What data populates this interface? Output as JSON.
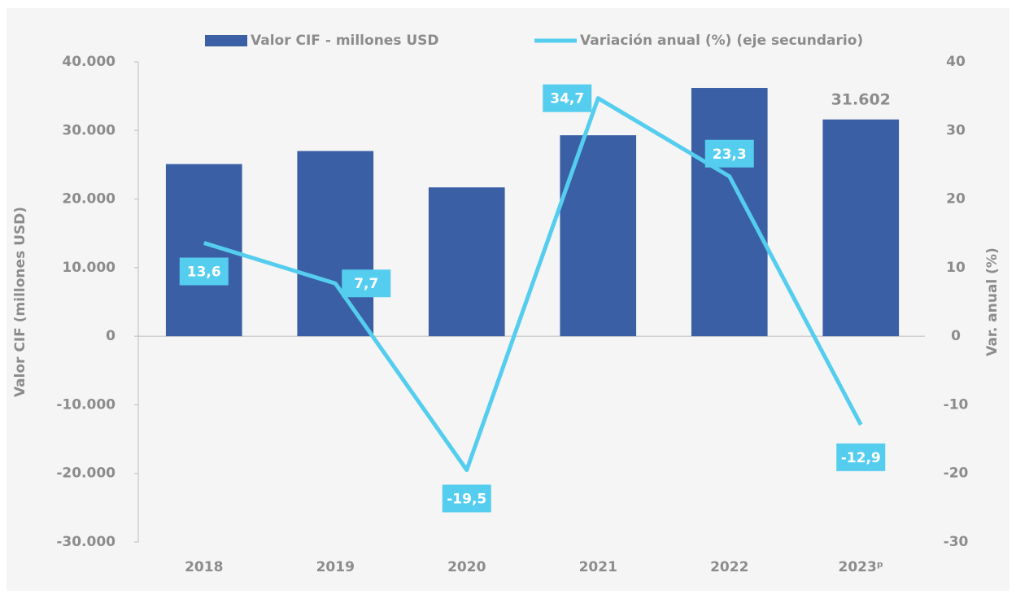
{
  "chart_data": {
    "type": "bar",
    "categories": [
      "2018",
      "2019",
      "2020",
      "2021",
      "2022",
      "2023ᵖ"
    ],
    "series": [
      {
        "name": "Valor CIF - millones USD",
        "type": "bar",
        "color": "#3a5fa5",
        "values": [
          25100,
          27000,
          21700,
          29300,
          36200,
          31602
        ],
        "value_labels": [
          null,
          null,
          null,
          null,
          null,
          "31.602"
        ]
      },
      {
        "name": "Variación anual (%) (eje secundario)",
        "type": "line",
        "axis": "y2",
        "color": "#55cdef",
        "values": [
          13.6,
          7.7,
          -19.5,
          34.7,
          23.3,
          -12.9
        ],
        "value_labels": [
          "13,6",
          "7,7",
          "-19,5",
          "34,7",
          "23,3",
          "-12,9"
        ]
      }
    ],
    "ylabel": "Valor CIF (millones USD)",
    "y2label": "Var. anual (%)",
    "ylim": [
      -30000,
      40000
    ],
    "yticks": [
      {
        "value": -30000,
        "label": "-30.000"
      },
      {
        "value": -20000,
        "label": "-20.000"
      },
      {
        "value": -10000,
        "label": "-10.000"
      },
      0,
      {
        "value": 10000,
        "label": "10.000"
      },
      {
        "value": 20000,
        "label": "20.000"
      },
      {
        "value": 30000,
        "label": "30.000"
      },
      {
        "value": 40000,
        "label": "40.000"
      }
    ],
    "y2lim": [
      -30,
      40
    ],
    "y2ticks": [
      -30,
      -20,
      -10,
      0,
      10,
      20,
      30,
      40
    ],
    "legend": "top",
    "grid": false
  }
}
